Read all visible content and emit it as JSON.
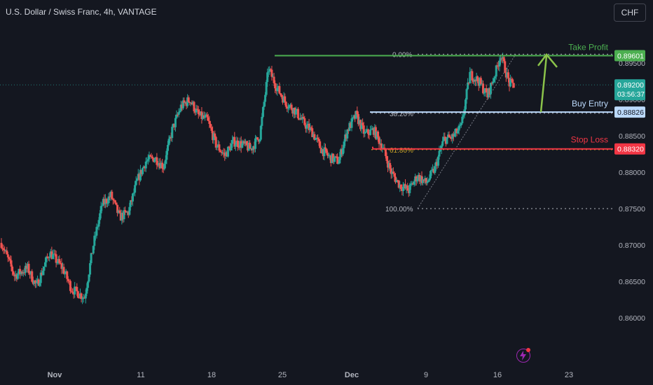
{
  "header": {
    "symbol_title": "U.S. Dollar / Swiss Franc, 4h, VANTAGE",
    "currency_button": "CHF"
  },
  "colors": {
    "background": "#141720",
    "up_candle": "#26a69a",
    "down_candle": "#ef5350",
    "take_profit": "#4caf50",
    "buy_entry": "#bbd9fb",
    "stop_loss": "#f23645",
    "axis_text": "#b2b5be",
    "fib_text": "#b2b5be"
  },
  "chart_data": {
    "type": "candlestick",
    "timeframe": "4h",
    "x_tick_labels": [
      "Nov",
      "11",
      "18",
      "25",
      "Dec",
      "9",
      "16",
      "23"
    ],
    "y_tick_labels": [
      "0.89500",
      "0.89000",
      "0.88500",
      "0.88000",
      "0.87500",
      "0.87000",
      "0.86500",
      "0.86000"
    ],
    "ylim": [
      0.859,
      0.9
    ],
    "price_anchors": [
      {
        "t": 0,
        "p": 0.8703
      },
      {
        "t": 3,
        "p": 0.8658
      },
      {
        "t": 6,
        "p": 0.8668
      },
      {
        "t": 8,
        "p": 0.8643
      },
      {
        "t": 11,
        "p": 0.869
      },
      {
        "t": 14,
        "p": 0.8668
      },
      {
        "t": 16,
        "p": 0.864
      },
      {
        "t": 19,
        "p": 0.8628
      },
      {
        "t": 21,
        "p": 0.87
      },
      {
        "t": 23,
        "p": 0.8755
      },
      {
        "t": 25,
        "p": 0.8768
      },
      {
        "t": 27,
        "p": 0.8738
      },
      {
        "t": 29,
        "p": 0.8745
      },
      {
        "t": 31,
        "p": 0.8788
      },
      {
        "t": 33,
        "p": 0.8815
      },
      {
        "t": 35,
        "p": 0.882
      },
      {
        "t": 37,
        "p": 0.8808
      },
      {
        "t": 39,
        "p": 0.8858
      },
      {
        "t": 41,
        "p": 0.889
      },
      {
        "t": 43,
        "p": 0.89
      },
      {
        "t": 45,
        "p": 0.8878
      },
      {
        "t": 47,
        "p": 0.8872
      },
      {
        "t": 49,
        "p": 0.8838
      },
      {
        "t": 51,
        "p": 0.8823
      },
      {
        "t": 53,
        "p": 0.8842
      },
      {
        "t": 55,
        "p": 0.8838
      },
      {
        "t": 57,
        "p": 0.8832
      },
      {
        "t": 59,
        "p": 0.885
      },
      {
        "t": 61,
        "p": 0.8942
      },
      {
        "t": 63,
        "p": 0.8915
      },
      {
        "t": 65,
        "p": 0.8895
      },
      {
        "t": 67,
        "p": 0.8885
      },
      {
        "t": 69,
        "p": 0.8868
      },
      {
        "t": 71,
        "p": 0.8855
      },
      {
        "t": 73,
        "p": 0.8832
      },
      {
        "t": 75,
        "p": 0.882
      },
      {
        "t": 77,
        "p": 0.8815
      },
      {
        "t": 79,
        "p": 0.8858
      },
      {
        "t": 81,
        "p": 0.8878
      },
      {
        "t": 83,
        "p": 0.8852
      },
      {
        "t": 85,
        "p": 0.8858
      },
      {
        "t": 87,
        "p": 0.8835
      },
      {
        "t": 89,
        "p": 0.88
      },
      {
        "t": 91,
        "p": 0.8782
      },
      {
        "t": 93,
        "p": 0.8775
      },
      {
        "t": 95,
        "p": 0.8795
      },
      {
        "t": 97,
        "p": 0.8785
      },
      {
        "t": 99,
        "p": 0.8805
      },
      {
        "t": 101,
        "p": 0.8845
      },
      {
        "t": 103,
        "p": 0.8848
      },
      {
        "t": 105,
        "p": 0.8862
      },
      {
        "t": 107,
        "p": 0.8935
      },
      {
        "t": 109,
        "p": 0.8925
      },
      {
        "t": 111,
        "p": 0.8905
      },
      {
        "t": 113,
        "p": 0.894
      },
      {
        "t": 114,
        "p": 0.8962
      },
      {
        "t": 115,
        "p": 0.8942
      },
      {
        "t": 116,
        "p": 0.8922
      },
      {
        "t": 117,
        "p": 0.892
      }
    ],
    "current_price_line": 0.892,
    "price_badges": [
      {
        "label": "0.89601",
        "sub": "",
        "kind": "take_profit"
      },
      {
        "label": "0.89200",
        "sub": "03:56:37",
        "kind": "current"
      },
      {
        "label": "0.88826",
        "sub": "",
        "kind": "buy_entry"
      },
      {
        "label": "0.88320",
        "sub": "",
        "kind": "stop_loss"
      }
    ],
    "fibonacci": [
      {
        "level_label": "0.00%",
        "price": 0.8962
      },
      {
        "level_label": "38.20%",
        "price": 0.8881
      },
      {
        "level_label": "61.80%",
        "price": 0.8831
      },
      {
        "level_label": "100.00%",
        "price": 0.875
      }
    ],
    "levels": [
      {
        "label": "Take Profit",
        "price": 0.89601,
        "kind": "take_profit"
      },
      {
        "label": "Buy Entry",
        "price": 0.88826,
        "kind": "buy_entry"
      },
      {
        "label": "Stop Loss",
        "price": 0.8832,
        "kind": "stop_loss"
      }
    ],
    "projection_arrow": {
      "from_price": 0.88826,
      "to_price": 0.8952
    }
  }
}
